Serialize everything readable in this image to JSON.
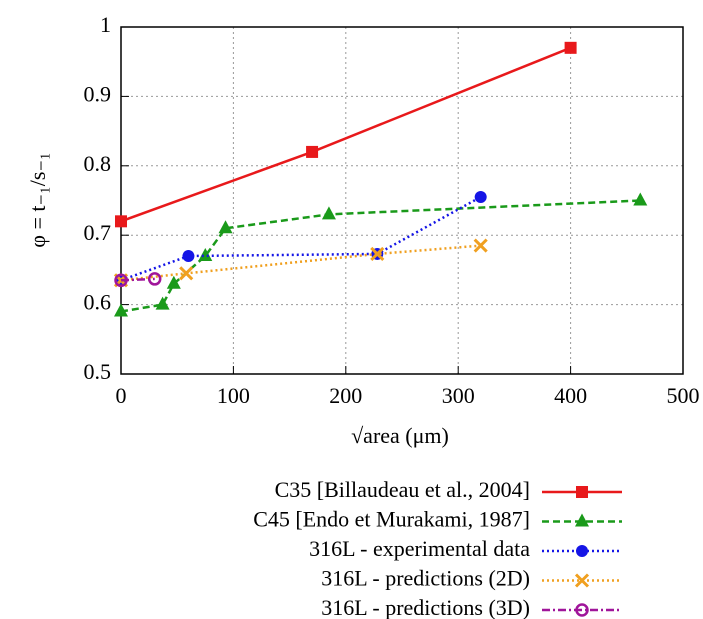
{
  "chart_data": {
    "type": "line",
    "x_label": "√area (μm)",
    "y_label": "φ = t₋₁/s₋₁",
    "xlim": [
      0,
      500
    ],
    "xticks": [
      0,
      100,
      200,
      300,
      400,
      500
    ],
    "ylim": [
      0.5,
      1
    ],
    "yticks": [
      0.5,
      0.6,
      0.7,
      0.8,
      0.9,
      1
    ],
    "grid": true,
    "series": [
      {
        "name": "C35 [Billaudeau et al., 2004]",
        "color": "#e8191b",
        "marker": "square",
        "dash": "solid",
        "x": [
          0,
          170,
          400
        ],
        "values": [
          0.72,
          0.82,
          0.97
        ]
      },
      {
        "name": "C45 [Endo et Murakami, 1987]",
        "color": "#1a9a1a",
        "marker": "triangle",
        "dash": "dashed",
        "x": [
          0,
          37,
          47,
          75,
          93,
          185,
          462
        ],
        "values": [
          0.59,
          0.6,
          0.63,
          0.67,
          0.71,
          0.73,
          0.75
        ]
      },
      {
        "name": "316L - experimental data",
        "color": "#1515e6",
        "marker": "circle",
        "dash": "dotted",
        "x": [
          0,
          60,
          228,
          320
        ],
        "values": [
          0.635,
          0.67,
          0.673,
          0.755
        ]
      },
      {
        "name": "316L - predictions (2D)",
        "color": "#f0a020",
        "marker": "cross",
        "dash": "dotted",
        "x": [
          0,
          58,
          228,
          320
        ],
        "values": [
          0.635,
          0.645,
          0.673,
          0.685
        ]
      },
      {
        "name": "316L - predictions (3D)",
        "color": "#a0159a",
        "marker": "open-circle",
        "dash": "dashdot",
        "x": [
          0,
          30
        ],
        "values": [
          0.635,
          0.637
        ]
      }
    ]
  }
}
